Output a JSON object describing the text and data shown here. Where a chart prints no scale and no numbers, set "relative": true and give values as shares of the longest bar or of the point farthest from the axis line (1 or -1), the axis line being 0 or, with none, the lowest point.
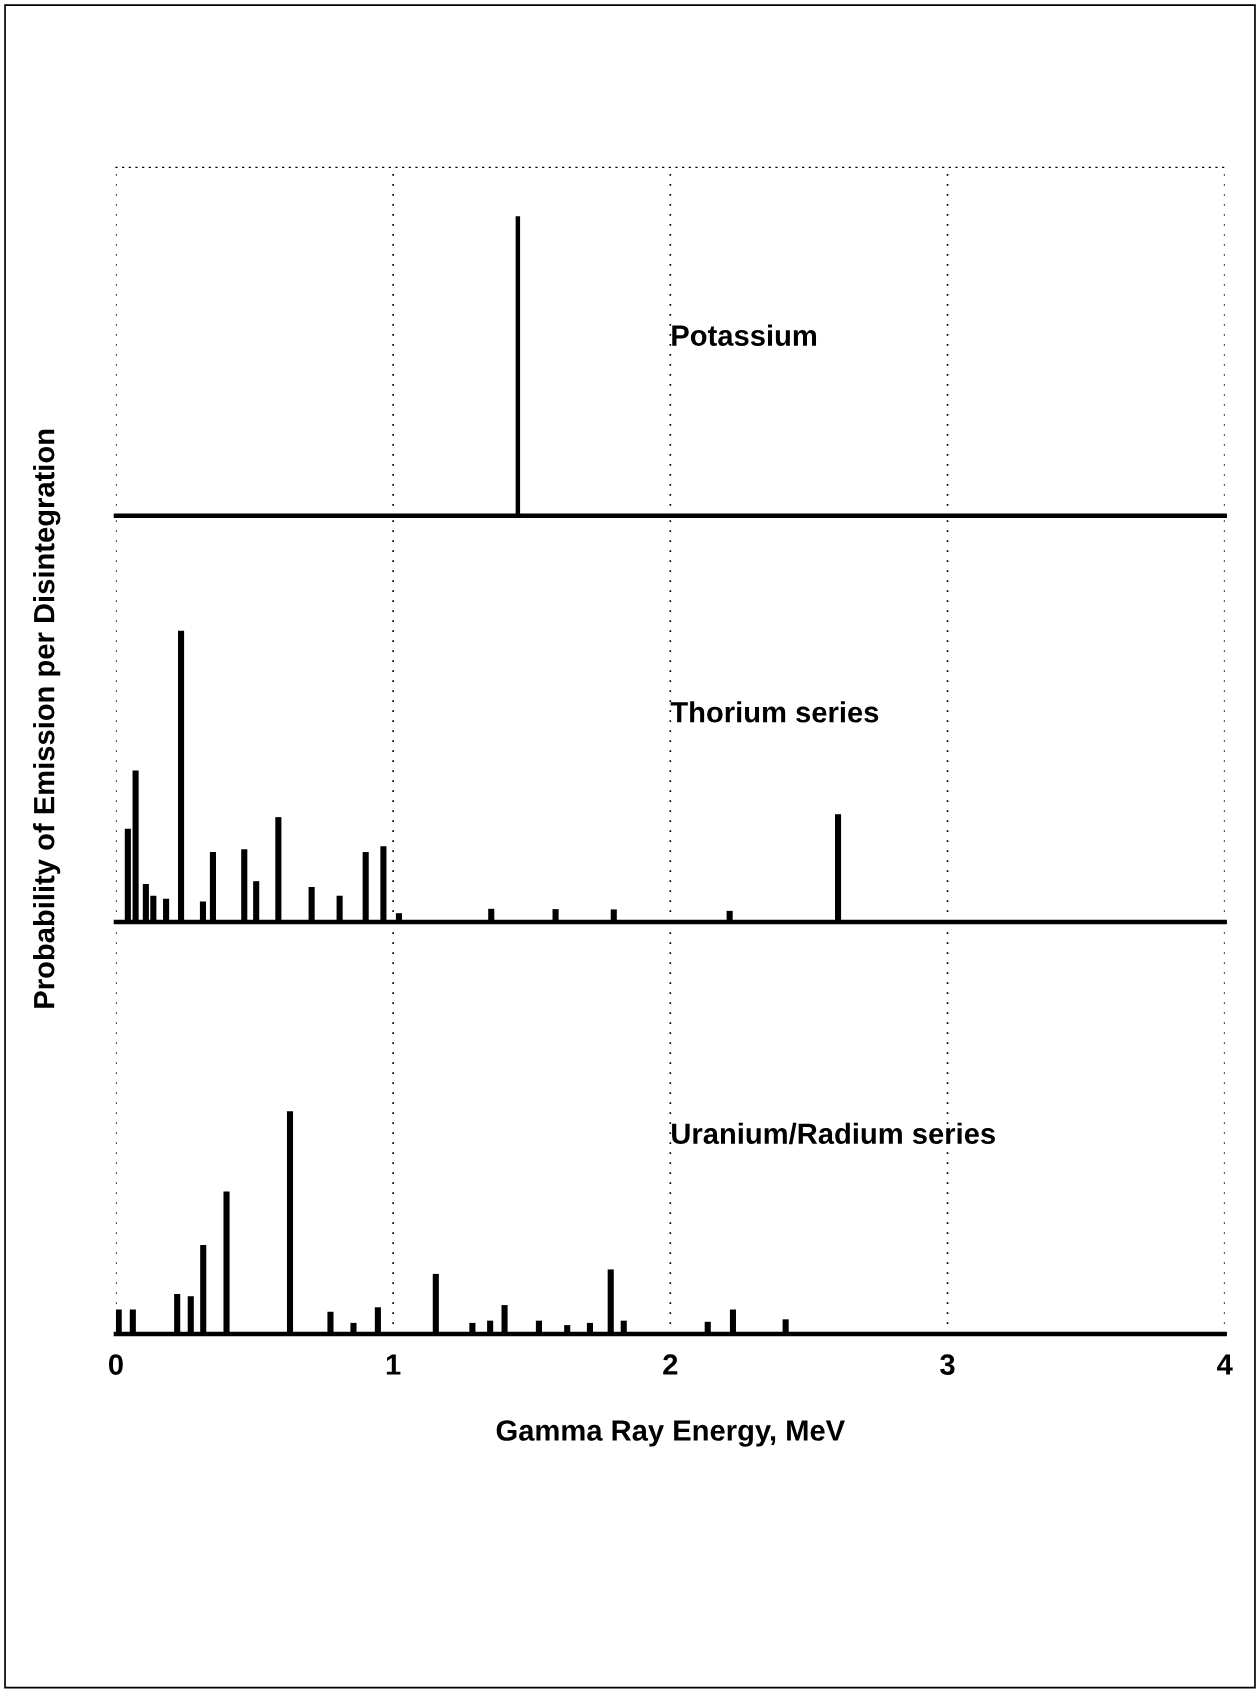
{
  "chart_data": [
    {
      "type": "bar",
      "title": "Potassium",
      "relative": true,
      "x": [
        1.45
      ],
      "values": [
        1
      ],
      "color": "#000000",
      "xlim": [
        0,
        4
      ],
      "xticks": [
        0,
        1,
        2,
        3,
        4
      ],
      "grid": "x",
      "tick_labels": false
    },
    {
      "type": "bar",
      "title": "Thorium series",
      "ylabel": "Probability of Emission per Disintegration",
      "relative": true,
      "x": [
        0.043,
        0.071,
        0.108,
        0.135,
        0.181,
        0.235,
        0.314,
        0.35,
        0.463,
        0.506,
        0.586,
        0.706,
        0.807,
        0.901,
        0.965,
        1.021,
        1.354,
        1.586,
        1.796,
        2.214,
        2.605
      ],
      "values": [
        0.32,
        0.52,
        0.13,
        0.09,
        0.08,
        1,
        0.07,
        0.24,
        0.25,
        0.14,
        0.36,
        0.12,
        0.09,
        0.24,
        0.26,
        0.03,
        0.045,
        0.044,
        0.043,
        0.038,
        0.37
      ],
      "color": "#000000",
      "xlim": [
        0,
        4
      ],
      "xticks": [
        0,
        1,
        2,
        3,
        4
      ],
      "grid": "x",
      "tick_labels": false
    },
    {
      "type": "bar",
      "title": "Uranium/Radium series",
      "xlabel": "Gamma Ray Energy, MeV",
      "relative": true,
      "x": [
        0.01,
        0.061,
        0.221,
        0.27,
        0.315,
        0.399,
        0.628,
        0.774,
        0.857,
        0.945,
        1.154,
        1.286,
        1.35,
        1.402,
        1.526,
        1.628,
        1.71,
        1.785,
        1.832,
        2.135,
        2.226,
        2.416
      ],
      "values": [
        0.11,
        0.11,
        0.18,
        0.17,
        0.4,
        0.64,
        1,
        0.1,
        0.05,
        0.12,
        0.27,
        0.05,
        0.06,
        0.13,
        0.06,
        0.04,
        0.05,
        0.29,
        0.06,
        0.055,
        0.11,
        0.066
      ],
      "color": "#000000",
      "xlim": [
        0,
        4
      ],
      "xticks": [
        0,
        1,
        2,
        3,
        4
      ],
      "grid": "x",
      "tick_labels": "x"
    }
  ]
}
